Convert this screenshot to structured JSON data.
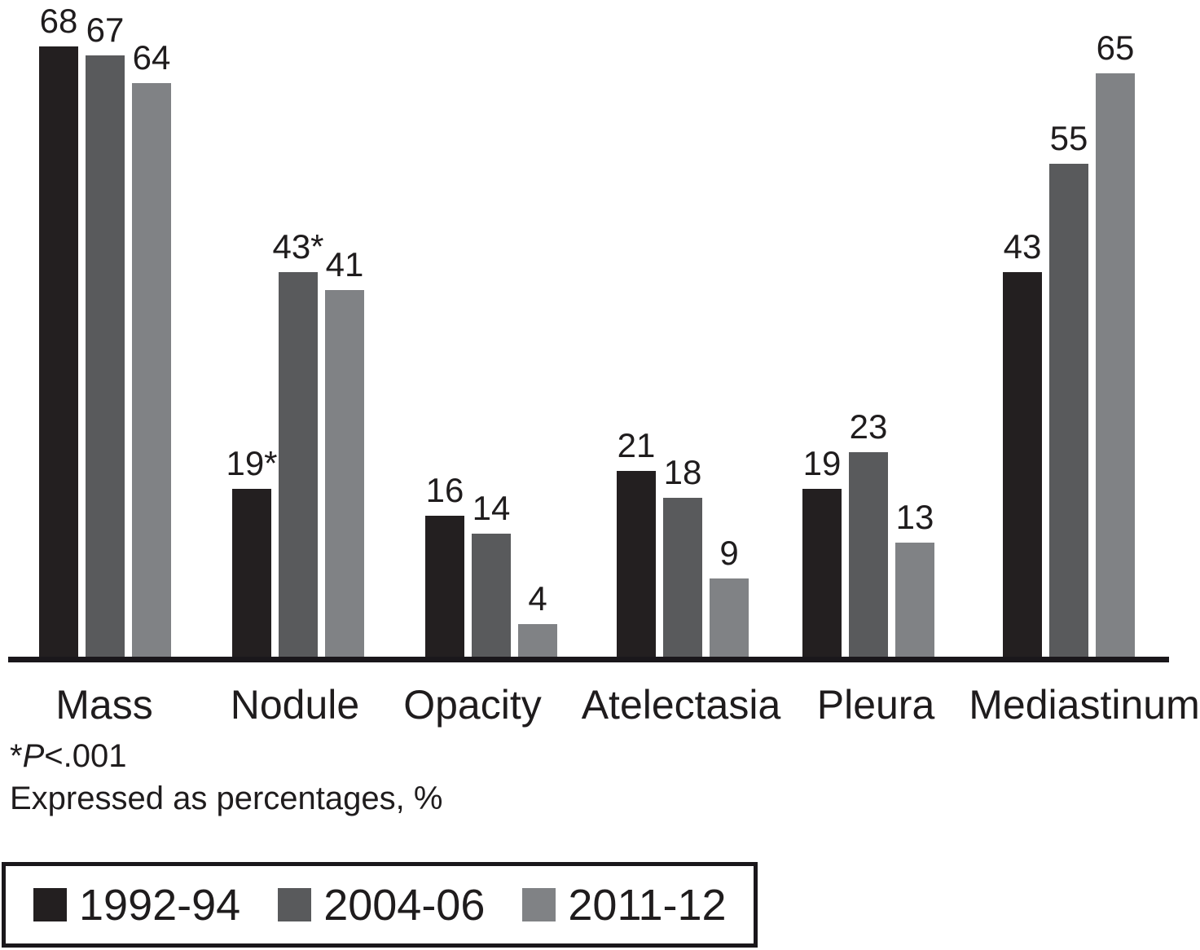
{
  "colors": {
    "series1": "#231f20",
    "series2": "#595a5c",
    "series3": "#808285",
    "axis": "#1a171b",
    "text": "#1f1c1d",
    "background": "#ffffff"
  },
  "chart_data": {
    "type": "bar",
    "title": "",
    "xlabel": "",
    "ylabel": "",
    "ylim": [
      0,
      70
    ],
    "grid": false,
    "legend_position": "bottom",
    "y_axis_shown": false,
    "categories": [
      "Mass",
      "Nodule",
      "Opacity",
      "Atelectasia",
      "Pleura",
      "Mediastinum"
    ],
    "series": [
      {
        "name": "1992-94",
        "color_key": "series1",
        "values": [
          68,
          19,
          16,
          21,
          19,
          43
        ],
        "labels": [
          "68",
          "19*",
          "16",
          "21",
          "19",
          "43"
        ]
      },
      {
        "name": "2004-06",
        "color_key": "series2",
        "values": [
          67,
          43,
          14,
          18,
          23,
          55
        ],
        "labels": [
          "67",
          "43*",
          "14",
          "18",
          "23",
          "55"
        ]
      },
      {
        "name": "2011-12",
        "color_key": "series3",
        "values": [
          64,
          41,
          4,
          9,
          13,
          65
        ],
        "labels": [
          "64",
          "41",
          "4",
          "9",
          "13",
          "65"
        ]
      }
    ]
  },
  "footnotes": {
    "significance": {
      "star": "*",
      "p_symbol": "P",
      "rest": "<.001"
    },
    "expressed": "Expressed as percentages, %"
  }
}
